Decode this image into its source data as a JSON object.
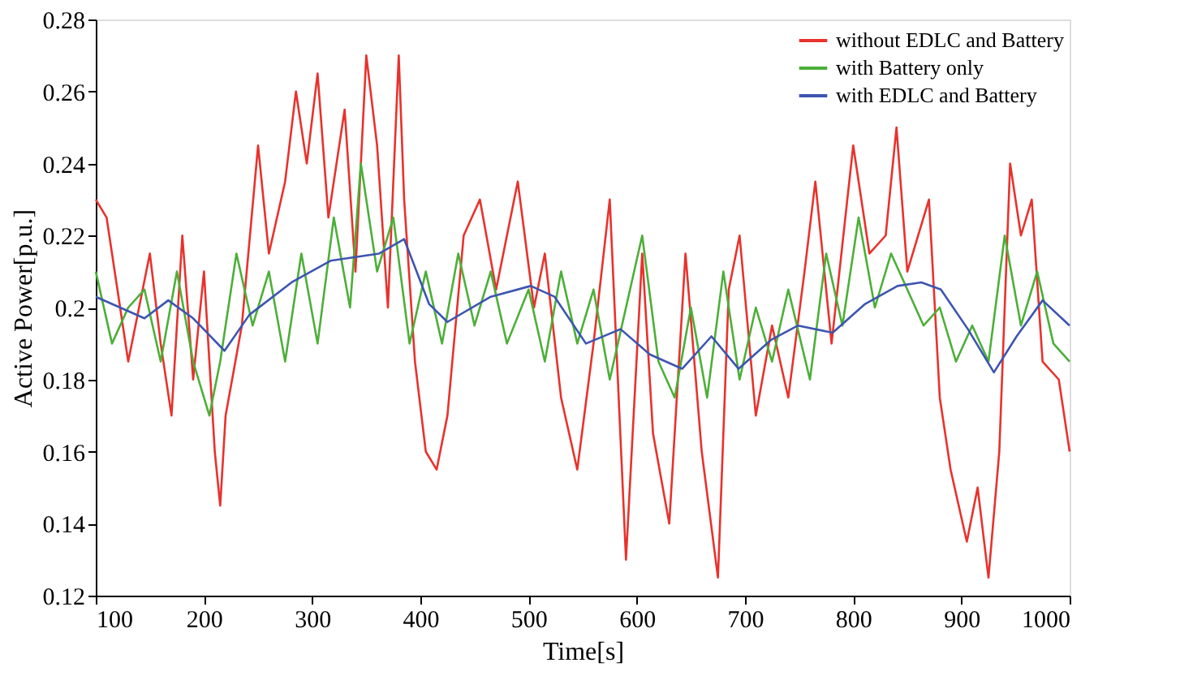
{
  "chart_data": {
    "type": "line",
    "xlabel": "Time[s]",
    "ylabel": "Active Power[p.u.]",
    "xlim": [
      100,
      1000
    ],
    "xticks": [
      100,
      200,
      300,
      400,
      500,
      600,
      700,
      800,
      900,
      1000
    ],
    "ylim": [
      0.12,
      0.28
    ],
    "yticks": [
      0.12,
      0.14,
      0.16,
      0.18,
      0.2,
      0.22,
      0.24,
      0.26,
      0.28
    ],
    "grid": false,
    "legend": "top right",
    "marker": "none",
    "line_style": "solid",
    "series": [
      {
        "name": "without EDLC and Battery",
        "color": "#e8322d",
        "x": [
          100,
          110,
          120,
          130,
          140,
          150,
          160,
          170,
          180,
          190,
          200,
          210,
          215,
          220,
          235,
          250,
          260,
          275,
          285,
          295,
          305,
          315,
          330,
          340,
          350,
          360,
          370,
          380,
          385,
          395,
          405,
          415,
          425,
          440,
          455,
          470,
          490,
          505,
          515,
          530,
          545,
          560,
          575,
          590,
          605,
          615,
          630,
          645,
          660,
          675,
          685,
          695,
          710,
          725,
          740,
          755,
          765,
          780,
          800,
          815,
          830,
          840,
          850,
          870,
          880,
          890,
          905,
          915,
          925,
          935,
          945,
          955,
          965,
          975,
          990,
          1000
        ],
        "values": [
          0.23,
          0.225,
          0.205,
          0.185,
          0.2,
          0.215,
          0.19,
          0.17,
          0.22,
          0.18,
          0.21,
          0.16,
          0.145,
          0.17,
          0.195,
          0.245,
          0.215,
          0.235,
          0.26,
          0.24,
          0.265,
          0.225,
          0.255,
          0.21,
          0.27,
          0.245,
          0.2,
          0.27,
          0.23,
          0.185,
          0.16,
          0.155,
          0.17,
          0.22,
          0.23,
          0.205,
          0.235,
          0.2,
          0.215,
          0.175,
          0.155,
          0.19,
          0.23,
          0.13,
          0.215,
          0.165,
          0.14,
          0.215,
          0.16,
          0.125,
          0.205,
          0.22,
          0.17,
          0.195,
          0.175,
          0.21,
          0.235,
          0.19,
          0.245,
          0.215,
          0.22,
          0.25,
          0.21,
          0.23,
          0.175,
          0.155,
          0.135,
          0.15,
          0.125,
          0.16,
          0.24,
          0.22,
          0.23,
          0.185,
          0.18,
          0.16
        ]
      },
      {
        "name": "with Battery only",
        "color": "#4caf38",
        "x": [
          100,
          115,
          130,
          145,
          160,
          175,
          190,
          205,
          215,
          230,
          245,
          260,
          275,
          290,
          305,
          320,
          335,
          345,
          360,
          375,
          390,
          405,
          420,
          435,
          450,
          465,
          480,
          500,
          515,
          530,
          545,
          560,
          575,
          590,
          605,
          620,
          635,
          650,
          665,
          680,
          695,
          710,
          725,
          740,
          760,
          775,
          790,
          805,
          820,
          835,
          850,
          865,
          880,
          895,
          910,
          925,
          940,
          955,
          970,
          985,
          1000
        ],
        "values": [
          0.21,
          0.19,
          0.2,
          0.205,
          0.185,
          0.21,
          0.185,
          0.17,
          0.185,
          0.215,
          0.195,
          0.21,
          0.185,
          0.215,
          0.19,
          0.225,
          0.2,
          0.24,
          0.21,
          0.225,
          0.19,
          0.21,
          0.19,
          0.215,
          0.195,
          0.21,
          0.19,
          0.205,
          0.185,
          0.21,
          0.19,
          0.205,
          0.18,
          0.2,
          0.22,
          0.185,
          0.175,
          0.2,
          0.175,
          0.21,
          0.18,
          0.2,
          0.185,
          0.205,
          0.18,
          0.215,
          0.195,
          0.225,
          0.2,
          0.215,
          0.205,
          0.195,
          0.2,
          0.185,
          0.195,
          0.185,
          0.22,
          0.195,
          0.21,
          0.19,
          0.185
        ]
      },
      {
        "name": "with EDLC and Battery",
        "color": "#3d55b0",
        "x": [
          100,
          145,
          167,
          190,
          219,
          242,
          281,
          317,
          362,
          385,
          408,
          425,
          465,
          502,
          524,
          553,
          585,
          612,
          642,
          669,
          694,
          724,
          749,
          781,
          811,
          841,
          863,
          881,
          906,
          930,
          951,
          975,
          1000
        ],
        "values": [
          0.203,
          0.197,
          0.202,
          0.197,
          0.188,
          0.198,
          0.207,
          0.213,
          0.215,
          0.219,
          0.201,
          0.196,
          0.203,
          0.206,
          0.203,
          0.19,
          0.194,
          0.187,
          0.183,
          0.192,
          0.183,
          0.191,
          0.195,
          0.193,
          0.201,
          0.206,
          0.207,
          0.205,
          0.194,
          0.182,
          0.192,
          0.202,
          0.195
        ]
      }
    ]
  }
}
